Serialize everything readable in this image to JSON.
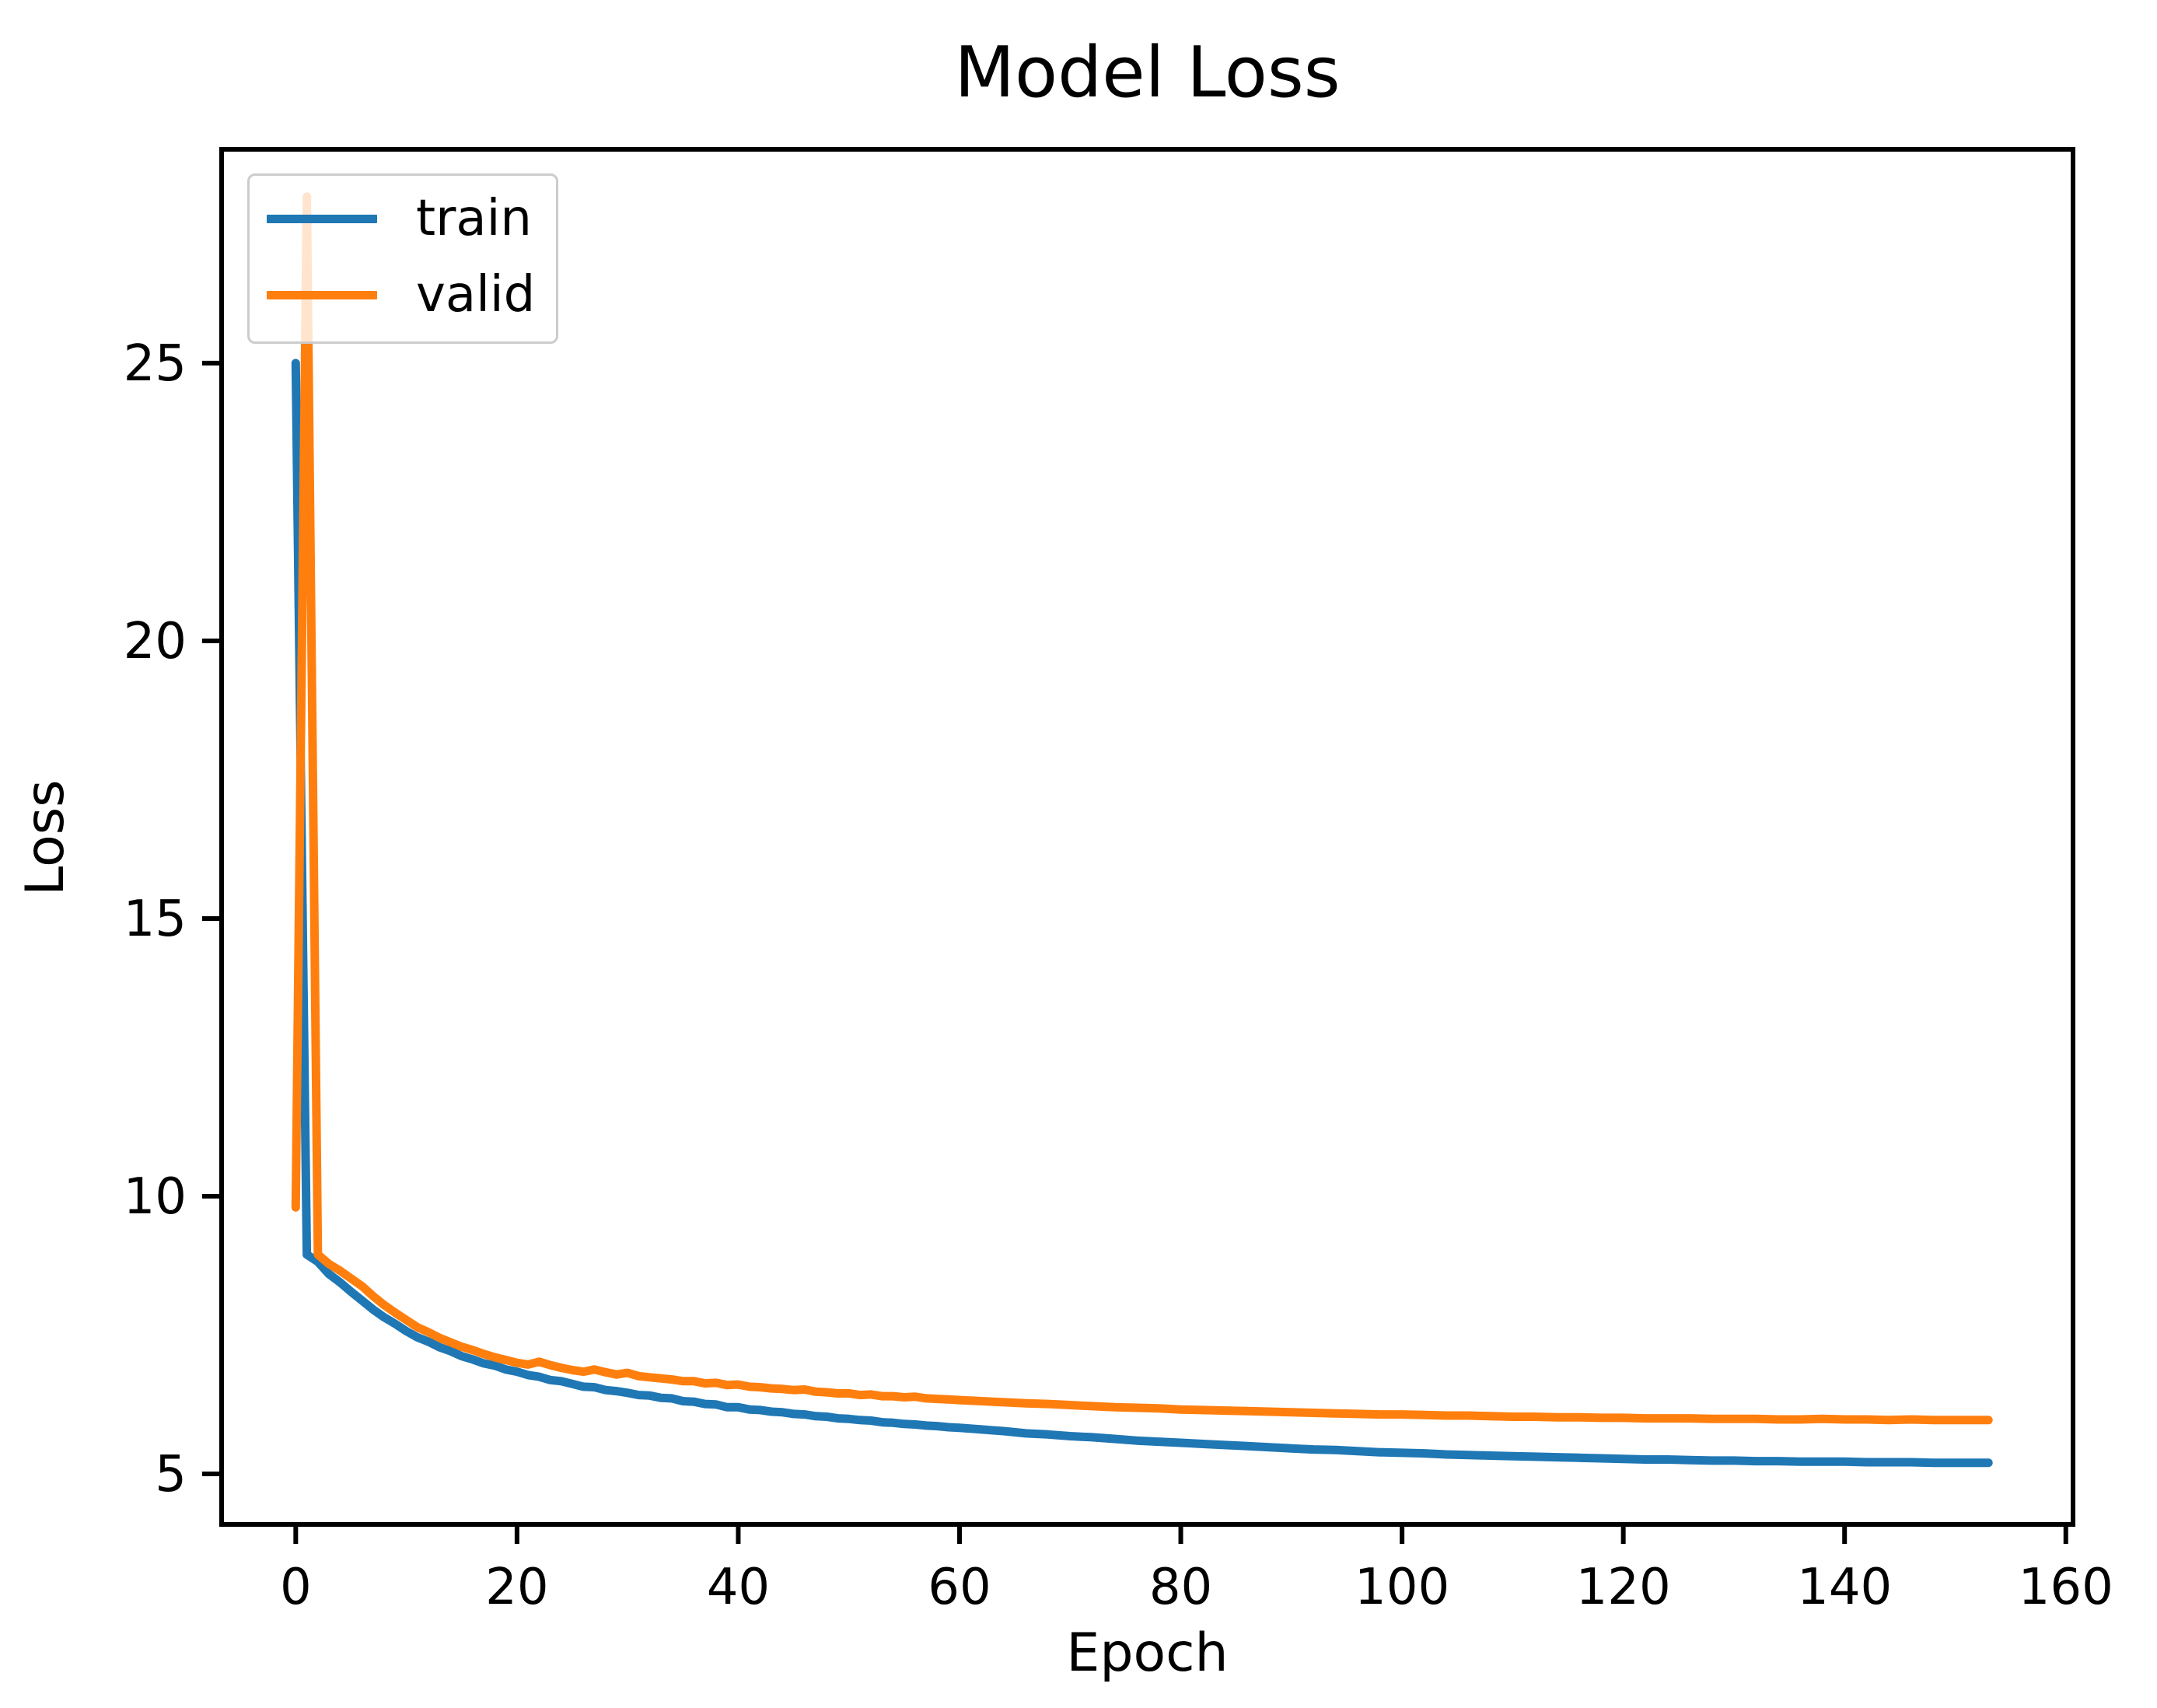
{
  "chart_data": {
    "type": "line",
    "title": "Model Loss",
    "xlabel": "Epoch",
    "ylabel": "Loss",
    "xlim": [
      -6.7,
      160.65
    ],
    "ylim": [
      4.09,
      28.85
    ],
    "xticks": [
      0,
      20,
      40,
      60,
      80,
      100,
      120,
      140,
      160
    ],
    "yticks": [
      5,
      10,
      15,
      20,
      25
    ],
    "grid": false,
    "background": "#ffffff",
    "axis_color": "#000000",
    "legend_position": "upper left",
    "legend": {
      "entries": [
        "train",
        "valid"
      ]
    },
    "series": [
      {
        "name": "train",
        "color": "#1f77b4",
        "points": [
          [
            0,
            25.0
          ],
          [
            1,
            8.95
          ],
          [
            2,
            8.82
          ],
          [
            3,
            8.6
          ],
          [
            4,
            8.45
          ],
          [
            5,
            8.28
          ],
          [
            6,
            8.12
          ],
          [
            7,
            7.96
          ],
          [
            8,
            7.82
          ],
          [
            9,
            7.7
          ],
          [
            10,
            7.57
          ],
          [
            11,
            7.46
          ],
          [
            12,
            7.38
          ],
          [
            13,
            7.28
          ],
          [
            14,
            7.21
          ],
          [
            15,
            7.12
          ],
          [
            16,
            7.06
          ],
          [
            17,
            6.99
          ],
          [
            18,
            6.95
          ],
          [
            19,
            6.88
          ],
          [
            20,
            6.84
          ],
          [
            21,
            6.78
          ],
          [
            22,
            6.75
          ],
          [
            23,
            6.69
          ],
          [
            24,
            6.67
          ],
          [
            25,
            6.62
          ],
          [
            26,
            6.57
          ],
          [
            27,
            6.56
          ],
          [
            28,
            6.51
          ],
          [
            29,
            6.49
          ],
          [
            30,
            6.46
          ],
          [
            31,
            6.42
          ],
          [
            32,
            6.41
          ],
          [
            33,
            6.37
          ],
          [
            34,
            6.36
          ],
          [
            35,
            6.31
          ],
          [
            36,
            6.3
          ],
          [
            37,
            6.26
          ],
          [
            38,
            6.25
          ],
          [
            39,
            6.2
          ],
          [
            40,
            6.2
          ],
          [
            41,
            6.16
          ],
          [
            42,
            6.15
          ],
          [
            43,
            6.12
          ],
          [
            44,
            6.11
          ],
          [
            45,
            6.08
          ],
          [
            46,
            6.07
          ],
          [
            47,
            6.04
          ],
          [
            48,
            6.03
          ],
          [
            49,
            6.0
          ],
          [
            50,
            5.99
          ],
          [
            51,
            5.97
          ],
          [
            52,
            5.96
          ],
          [
            53,
            5.93
          ],
          [
            54,
            5.92
          ],
          [
            55,
            5.9
          ],
          [
            56,
            5.89
          ],
          [
            57,
            5.87
          ],
          [
            58,
            5.86
          ],
          [
            59,
            5.84
          ],
          [
            60,
            5.83
          ],
          [
            62,
            5.8
          ],
          [
            64,
            5.77
          ],
          [
            66,
            5.73
          ],
          [
            68,
            5.71
          ],
          [
            70,
            5.68
          ],
          [
            72,
            5.66
          ],
          [
            74,
            5.63
          ],
          [
            76,
            5.6
          ],
          [
            78,
            5.58
          ],
          [
            80,
            5.56
          ],
          [
            82,
            5.54
          ],
          [
            84,
            5.52
          ],
          [
            86,
            5.5
          ],
          [
            88,
            5.48
          ],
          [
            90,
            5.46
          ],
          [
            92,
            5.44
          ],
          [
            94,
            5.43
          ],
          [
            96,
            5.41
          ],
          [
            98,
            5.39
          ],
          [
            100,
            5.38
          ],
          [
            102,
            5.37
          ],
          [
            104,
            5.35
          ],
          [
            106,
            5.34
          ],
          [
            108,
            5.33
          ],
          [
            110,
            5.32
          ],
          [
            112,
            5.31
          ],
          [
            114,
            5.3
          ],
          [
            116,
            5.29
          ],
          [
            118,
            5.28
          ],
          [
            120,
            5.27
          ],
          [
            122,
            5.26
          ],
          [
            124,
            5.26
          ],
          [
            126,
            5.25
          ],
          [
            128,
            5.24
          ],
          [
            130,
            5.24
          ],
          [
            132,
            5.23
          ],
          [
            134,
            5.23
          ],
          [
            136,
            5.22
          ],
          [
            138,
            5.22
          ],
          [
            140,
            5.22
          ],
          [
            142,
            5.21
          ],
          [
            144,
            5.21
          ],
          [
            146,
            5.21
          ],
          [
            148,
            5.2
          ],
          [
            150,
            5.2
          ],
          [
            152,
            5.2
          ],
          [
            153,
            5.2
          ]
        ]
      },
      {
        "name": "valid",
        "color": "#ff7f0e",
        "points": [
          [
            0,
            9.8
          ],
          [
            1,
            28.0
          ],
          [
            2,
            8.95
          ],
          [
            3,
            8.78
          ],
          [
            4,
            8.66
          ],
          [
            5,
            8.52
          ],
          [
            6,
            8.38
          ],
          [
            7,
            8.2
          ],
          [
            8,
            8.04
          ],
          [
            9,
            7.9
          ],
          [
            10,
            7.77
          ],
          [
            11,
            7.64
          ],
          [
            12,
            7.55
          ],
          [
            13,
            7.45
          ],
          [
            14,
            7.37
          ],
          [
            15,
            7.29
          ],
          [
            16,
            7.23
          ],
          [
            17,
            7.16
          ],
          [
            18,
            7.1
          ],
          [
            19,
            7.05
          ],
          [
            20,
            7.0
          ],
          [
            21,
            6.97
          ],
          [
            22,
            7.02
          ],
          [
            23,
            6.96
          ],
          [
            24,
            6.91
          ],
          [
            25,
            6.87
          ],
          [
            26,
            6.84
          ],
          [
            27,
            6.88
          ],
          [
            28,
            6.83
          ],
          [
            29,
            6.79
          ],
          [
            30,
            6.82
          ],
          [
            31,
            6.76
          ],
          [
            32,
            6.74
          ],
          [
            33,
            6.72
          ],
          [
            34,
            6.7
          ],
          [
            35,
            6.67
          ],
          [
            36,
            6.67
          ],
          [
            37,
            6.63
          ],
          [
            38,
            6.64
          ],
          [
            39,
            6.6
          ],
          [
            40,
            6.61
          ],
          [
            41,
            6.57
          ],
          [
            42,
            6.56
          ],
          [
            43,
            6.54
          ],
          [
            44,
            6.53
          ],
          [
            45,
            6.51
          ],
          [
            46,
            6.52
          ],
          [
            47,
            6.48
          ],
          [
            48,
            6.47
          ],
          [
            49,
            6.45
          ],
          [
            50,
            6.45
          ],
          [
            51,
            6.42
          ],
          [
            52,
            6.43
          ],
          [
            53,
            6.4
          ],
          [
            54,
            6.4
          ],
          [
            55,
            6.38
          ],
          [
            56,
            6.39
          ],
          [
            57,
            6.36
          ],
          [
            58,
            6.35
          ],
          [
            59,
            6.34
          ],
          [
            60,
            6.33
          ],
          [
            62,
            6.31
          ],
          [
            64,
            6.29
          ],
          [
            66,
            6.27
          ],
          [
            68,
            6.26
          ],
          [
            70,
            6.24
          ],
          [
            72,
            6.22
          ],
          [
            74,
            6.2
          ],
          [
            76,
            6.19
          ],
          [
            78,
            6.18
          ],
          [
            80,
            6.16
          ],
          [
            82,
            6.15
          ],
          [
            84,
            6.14
          ],
          [
            86,
            6.13
          ],
          [
            88,
            6.12
          ],
          [
            90,
            6.11
          ],
          [
            92,
            6.1
          ],
          [
            94,
            6.09
          ],
          [
            96,
            6.08
          ],
          [
            98,
            6.07
          ],
          [
            100,
            6.07
          ],
          [
            102,
            6.06
          ],
          [
            104,
            6.05
          ],
          [
            106,
            6.05
          ],
          [
            108,
            6.04
          ],
          [
            110,
            6.03
          ],
          [
            112,
            6.03
          ],
          [
            114,
            6.02
          ],
          [
            116,
            6.02
          ],
          [
            118,
            6.01
          ],
          [
            120,
            6.01
          ],
          [
            122,
            6.0
          ],
          [
            124,
            6.0
          ],
          [
            126,
            6.0
          ],
          [
            128,
            5.99
          ],
          [
            130,
            5.99
          ],
          [
            132,
            5.99
          ],
          [
            134,
            5.98
          ],
          [
            136,
            5.98
          ],
          [
            138,
            5.99
          ],
          [
            140,
            5.98
          ],
          [
            142,
            5.98
          ],
          [
            144,
            5.97
          ],
          [
            146,
            5.98
          ],
          [
            148,
            5.97
          ],
          [
            150,
            5.97
          ],
          [
            152,
            5.97
          ],
          [
            153,
            5.97
          ]
        ]
      }
    ]
  }
}
